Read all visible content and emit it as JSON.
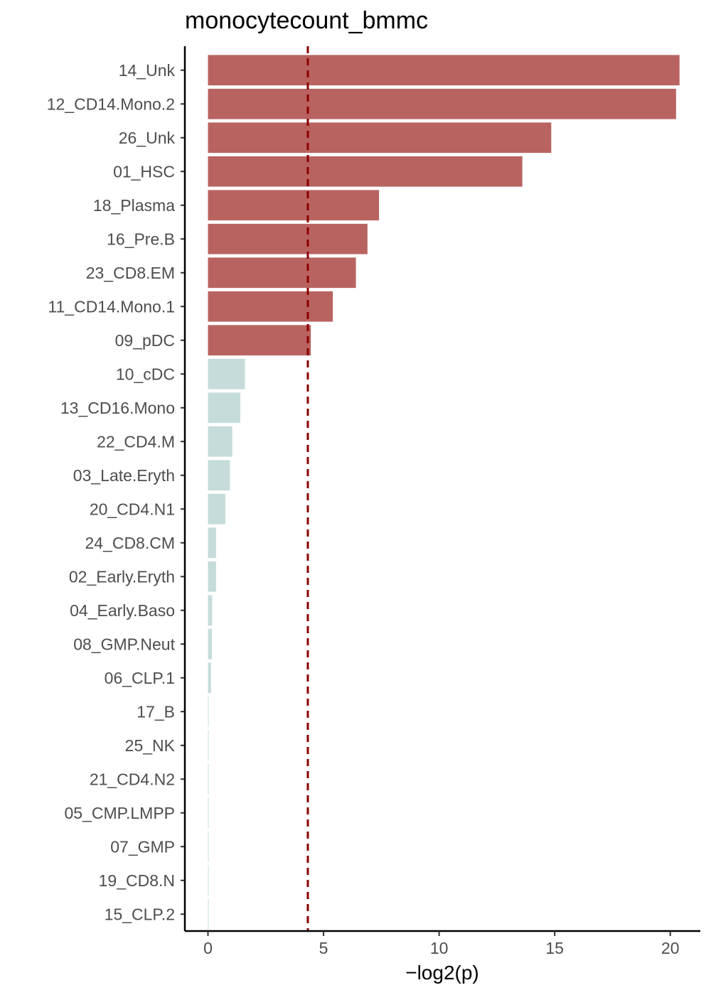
{
  "chart_data": {
    "type": "bar",
    "orientation": "horizontal",
    "title": "monocytecount_bmmc",
    "xlabel": "−log2(p)",
    "ylabel": "",
    "xlim": [
      -1,
      21.3
    ],
    "xticks": [
      0,
      5,
      10,
      15,
      20
    ],
    "threshold": 4.32,
    "threshold_color": "#8b0000",
    "grid": false,
    "legend": "none",
    "colors": {
      "significant": "#b96360",
      "nonsignificant": "#c5dcdb"
    },
    "categories": [
      "14_Unk",
      "12_CD14.Mono.2",
      "26_Unk",
      "01_HSC",
      "18_Plasma",
      "16_Pre.B",
      "23_CD8.EM",
      "11_CD14.Mono.1",
      "09_pDC",
      "10_cDC",
      "13_CD16.Mono",
      "22_CD4.M",
      "03_Late.Eryth",
      "20_CD4.N1",
      "24_CD8.CM",
      "02_Early.Eryth",
      "04_Early.Baso",
      "08_GMP.Neut",
      "06_CLP.1",
      "17_B",
      "25_NK",
      "21_CD4.N2",
      "05_CMP.LMPP",
      "07_GMP",
      "19_CD8.N",
      "15_CLP.2"
    ],
    "values": [
      20.4,
      20.25,
      14.85,
      13.6,
      7.4,
      6.9,
      6.4,
      5.4,
      4.45,
      1.6,
      1.4,
      1.05,
      0.95,
      0.75,
      0.35,
      0.35,
      0.18,
      0.17,
      0.13,
      0.03,
      0.03,
      0.03,
      0.03,
      0.03,
      0.03,
      0.03
    ]
  }
}
